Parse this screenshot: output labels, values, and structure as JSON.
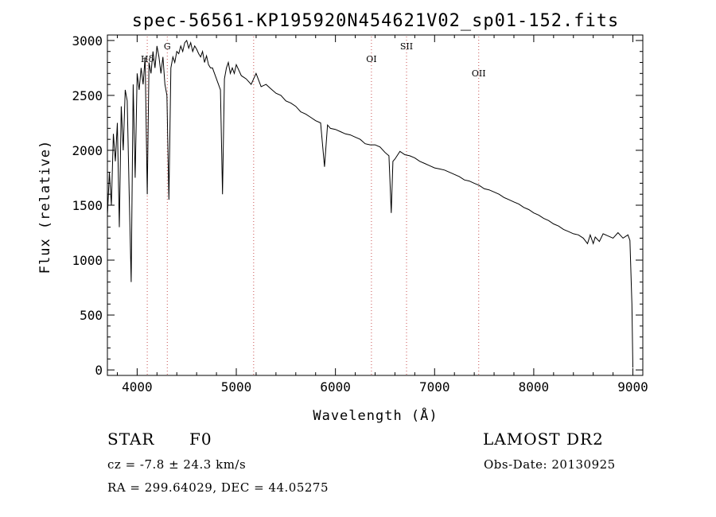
{
  "chart_data": {
    "type": "line",
    "title": "spec-56561-KP195920N454621V02_sp01-152.fits",
    "xlabel": "Wavelength (Å)",
    "ylabel": "Flux (relative)",
    "xlim": [
      3700,
      9100
    ],
    "ylim": [
      -50,
      3050
    ],
    "x_ticks": [
      4000,
      5000,
      6000,
      7000,
      8000,
      9000
    ],
    "y_ticks": [
      0,
      500,
      1000,
      1500,
      2000,
      2500,
      3000
    ],
    "grid": false,
    "series": [
      {
        "color": "#000000",
        "x": [
          3700,
          3720,
          3740,
          3760,
          3780,
          3800,
          3820,
          3840,
          3860,
          3880,
          3900,
          3920,
          3940,
          3960,
          3980,
          4000,
          4020,
          4040,
          4060,
          4080,
          4102,
          4120,
          4140,
          4160,
          4180,
          4200,
          4220,
          4240,
          4260,
          4280,
          4300,
          4320,
          4340,
          4360,
          4380,
          4400,
          4420,
          4440,
          4460,
          4480,
          4500,
          4520,
          4540,
          4560,
          4580,
          4600,
          4620,
          4640,
          4660,
          4680,
          4700,
          4720,
          4740,
          4760,
          4780,
          4800,
          4820,
          4840,
          4861,
          4880,
          4900,
          4920,
          4940,
          4960,
          4980,
          5000,
          5050,
          5100,
          5150,
          5200,
          5250,
          5300,
          5350,
          5400,
          5450,
          5500,
          5550,
          5600,
          5650,
          5700,
          5750,
          5800,
          5850,
          5890,
          5920,
          5950,
          6000,
          6050,
          6100,
          6150,
          6200,
          6250,
          6300,
          6350,
          6400,
          6450,
          6500,
          6540,
          6563,
          6580,
          6600,
          6650,
          6700,
          6750,
          6800,
          6850,
          6900,
          6950,
          7000,
          7050,
          7100,
          7150,
          7200,
          7250,
          7300,
          7350,
          7400,
          7450,
          7500,
          7550,
          7600,
          7650,
          7700,
          7750,
          7800,
          7850,
          7900,
          7950,
          8000,
          8050,
          8100,
          8150,
          8200,
          8250,
          8300,
          8350,
          8400,
          8450,
          8500,
          8542,
          8570,
          8600,
          8620,
          8662,
          8700,
          8750,
          8800,
          8850,
          8900,
          8950,
          8970,
          8990,
          9000
        ],
        "y": [
          1400,
          1800,
          1500,
          2150,
          1900,
          2250,
          1300,
          2400,
          2000,
          2550,
          2450,
          1600,
          800,
          2600,
          1750,
          2700,
          2550,
          2750,
          2600,
          2850,
          1600,
          2800,
          2700,
          2900,
          2750,
          2950,
          2850,
          2700,
          2850,
          2600,
          2500,
          1550,
          2750,
          2850,
          2800,
          2900,
          2880,
          2950,
          2900,
          2980,
          3000,
          2930,
          2980,
          2900,
          2950,
          2920,
          2880,
          2850,
          2900,
          2800,
          2860,
          2780,
          2750,
          2750,
          2700,
          2650,
          2600,
          2550,
          1600,
          2650,
          2750,
          2800,
          2700,
          2750,
          2700,
          2780,
          2680,
          2650,
          2600,
          2700,
          2580,
          2600,
          2560,
          2520,
          2500,
          2450,
          2430,
          2400,
          2350,
          2330,
          2300,
          2270,
          2250,
          1850,
          2230,
          2200,
          2190,
          2170,
          2150,
          2140,
          2120,
          2100,
          2060,
          2050,
          2050,
          2030,
          1980,
          1950,
          1430,
          1900,
          1920,
          1990,
          1960,
          1950,
          1930,
          1900,
          1880,
          1860,
          1840,
          1830,
          1820,
          1800,
          1780,
          1760,
          1730,
          1720,
          1700,
          1680,
          1650,
          1640,
          1620,
          1600,
          1570,
          1550,
          1530,
          1510,
          1480,
          1460,
          1430,
          1410,
          1380,
          1360,
          1330,
          1310,
          1280,
          1260,
          1240,
          1230,
          1200,
          1150,
          1230,
          1150,
          1210,
          1170,
          1240,
          1220,
          1200,
          1250,
          1200,
          1230,
          1180,
          600,
          20
        ]
      }
    ],
    "lines": [
      {
        "label": "Hδ",
        "x": 4102
      },
      {
        "label": "G",
        "x": 4304
      },
      {
        "label": "",
        "x": 5175
      },
      {
        "label": "OI",
        "x": 6363
      },
      {
        "label": "SII",
        "x": 6717
      },
      {
        "label": "OII",
        "x": 7445
      }
    ]
  },
  "info": {
    "object_class": "STAR",
    "subclass": "F0",
    "survey": "LAMOST DR2",
    "redshift": "cz =  -7.8 ± 24.3 km/s",
    "obs_date": "Obs-Date: 20130925",
    "coordinates": "RA = 299.64029, DEC =  44.05275"
  },
  "colors": {
    "spectrum": "#000000",
    "line_markers": "#c85050"
  }
}
